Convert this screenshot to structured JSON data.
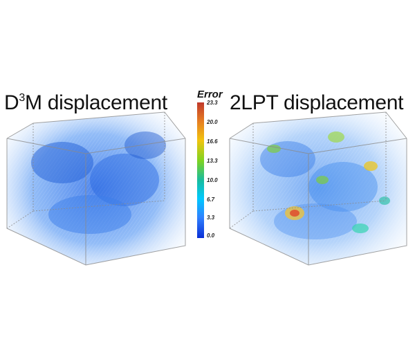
{
  "left_panel": {
    "title_main": "D",
    "title_sup": "3",
    "title_rest": "M displacement"
  },
  "right_panel": {
    "title": "2LPT displacement"
  },
  "colorbar": {
    "title": "Error",
    "ticks": [
      "23.3",
      "20.0",
      "16.6",
      "13.3",
      "10.0",
      "6.7",
      "3.3",
      "0.0"
    ],
    "colors": [
      "#c0392b",
      "#e67e22",
      "#f1c40f",
      "#7ed321",
      "#1abc9c",
      "#00c8ff",
      "#2f80ff",
      "#0a2fd6"
    ]
  }
}
